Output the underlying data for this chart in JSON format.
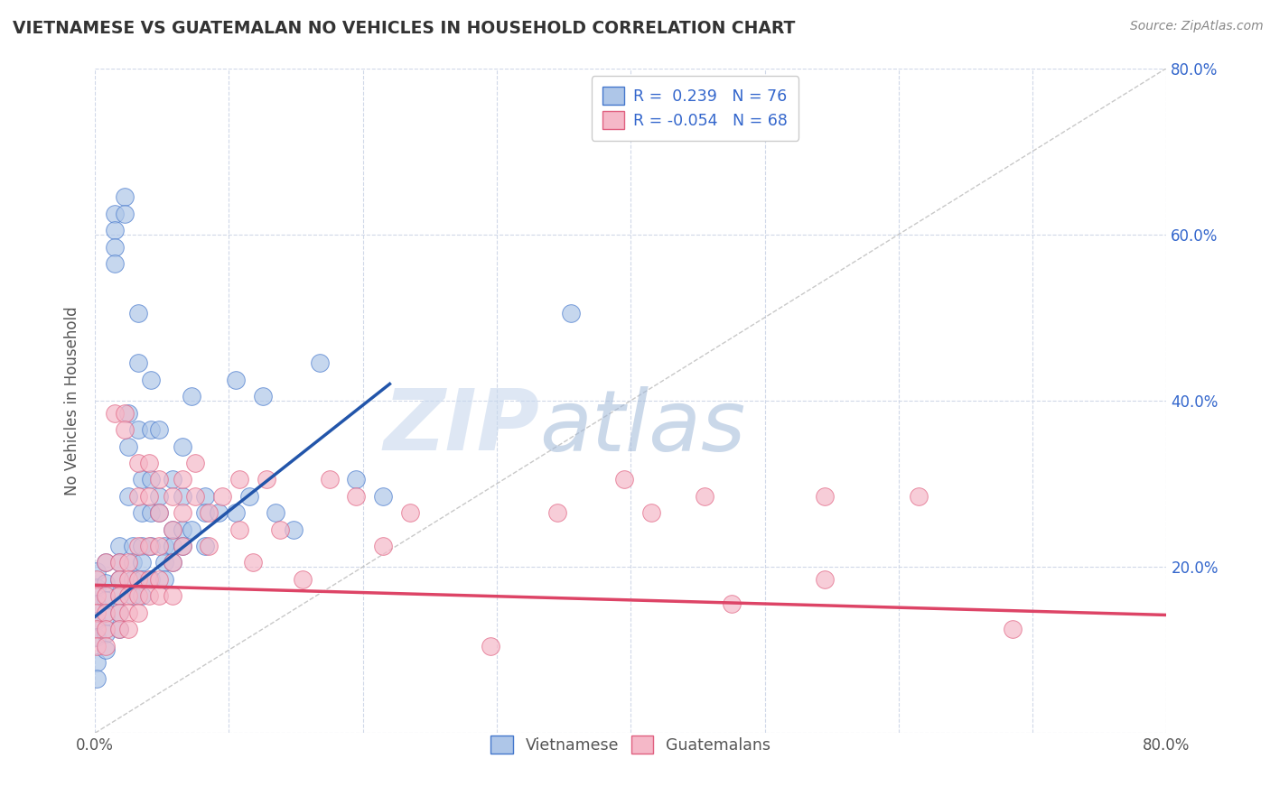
{
  "title": "VIETNAMESE VS GUATEMALAN NO VEHICLES IN HOUSEHOLD CORRELATION CHART",
  "source": "Source: ZipAtlas.com",
  "ylabel": "No Vehicles in Household",
  "xlim": [
    0.0,
    0.8
  ],
  "ylim": [
    0.0,
    0.8
  ],
  "xtick_vals": [
    0.0,
    0.1,
    0.2,
    0.3,
    0.4,
    0.5,
    0.6,
    0.7,
    0.8
  ],
  "ytick_vals": [
    0.0,
    0.2,
    0.4,
    0.6,
    0.8
  ],
  "right_ytick_vals": [
    0.0,
    0.2,
    0.4,
    0.6,
    0.8
  ],
  "right_ytick_labels": [
    "",
    "20.0%",
    "40.0%",
    "60.0%",
    "80.0%"
  ],
  "vietnamese_color": "#aec6e8",
  "guatemalan_color": "#f5b8c8",
  "vietnamese_edge_color": "#4477cc",
  "guatemalan_edge_color": "#e06080",
  "vietnamese_line_color": "#2255aa",
  "guatemalan_line_color": "#dd4466",
  "diagonal_color": "#bbbbbb",
  "watermark_zip": "ZIP",
  "watermark_atlas": "atlas",
  "legend_text_color": "#3366cc",
  "background_color": "#ffffff",
  "grid_color": "#d0d8e8",
  "title_color": "#333333",
  "source_color": "#888888",
  "vietnamese_points": [
    [
      0.001,
      0.195
    ],
    [
      0.001,
      0.175
    ],
    [
      0.001,
      0.155
    ],
    [
      0.001,
      0.135
    ],
    [
      0.001,
      0.115
    ],
    [
      0.001,
      0.085
    ],
    [
      0.001,
      0.065
    ],
    [
      0.008,
      0.205
    ],
    [
      0.008,
      0.18
    ],
    [
      0.008,
      0.16
    ],
    [
      0.008,
      0.14
    ],
    [
      0.008,
      0.12
    ],
    [
      0.008,
      0.1
    ],
    [
      0.015,
      0.625
    ],
    [
      0.015,
      0.605
    ],
    [
      0.015,
      0.585
    ],
    [
      0.015,
      0.565
    ],
    [
      0.018,
      0.225
    ],
    [
      0.018,
      0.205
    ],
    [
      0.018,
      0.185
    ],
    [
      0.018,
      0.165
    ],
    [
      0.018,
      0.145
    ],
    [
      0.018,
      0.125
    ],
    [
      0.022,
      0.645
    ],
    [
      0.022,
      0.625
    ],
    [
      0.025,
      0.385
    ],
    [
      0.025,
      0.345
    ],
    [
      0.025,
      0.285
    ],
    [
      0.028,
      0.225
    ],
    [
      0.028,
      0.205
    ],
    [
      0.028,
      0.185
    ],
    [
      0.028,
      0.165
    ],
    [
      0.032,
      0.505
    ],
    [
      0.032,
      0.445
    ],
    [
      0.032,
      0.365
    ],
    [
      0.035,
      0.305
    ],
    [
      0.035,
      0.265
    ],
    [
      0.035,
      0.225
    ],
    [
      0.035,
      0.205
    ],
    [
      0.035,
      0.185
    ],
    [
      0.035,
      0.165
    ],
    [
      0.042,
      0.425
    ],
    [
      0.042,
      0.365
    ],
    [
      0.042,
      0.305
    ],
    [
      0.042,
      0.265
    ],
    [
      0.042,
      0.225
    ],
    [
      0.042,
      0.185
    ],
    [
      0.048,
      0.365
    ],
    [
      0.048,
      0.285
    ],
    [
      0.048,
      0.265
    ],
    [
      0.052,
      0.225
    ],
    [
      0.052,
      0.205
    ],
    [
      0.052,
      0.185
    ],
    [
      0.058,
      0.305
    ],
    [
      0.058,
      0.245
    ],
    [
      0.058,
      0.225
    ],
    [
      0.058,
      0.205
    ],
    [
      0.065,
      0.345
    ],
    [
      0.065,
      0.285
    ],
    [
      0.065,
      0.245
    ],
    [
      0.065,
      0.225
    ],
    [
      0.072,
      0.405
    ],
    [
      0.072,
      0.245
    ],
    [
      0.082,
      0.285
    ],
    [
      0.082,
      0.265
    ],
    [
      0.082,
      0.225
    ],
    [
      0.092,
      0.265
    ],
    [
      0.105,
      0.425
    ],
    [
      0.105,
      0.265
    ],
    [
      0.115,
      0.285
    ],
    [
      0.125,
      0.405
    ],
    [
      0.135,
      0.265
    ],
    [
      0.148,
      0.245
    ],
    [
      0.168,
      0.445
    ],
    [
      0.195,
      0.305
    ],
    [
      0.215,
      0.285
    ],
    [
      0.355,
      0.505
    ]
  ],
  "guatemalan_points": [
    [
      0.001,
      0.185
    ],
    [
      0.001,
      0.165
    ],
    [
      0.001,
      0.145
    ],
    [
      0.001,
      0.125
    ],
    [
      0.001,
      0.105
    ],
    [
      0.008,
      0.205
    ],
    [
      0.008,
      0.165
    ],
    [
      0.008,
      0.145
    ],
    [
      0.008,
      0.125
    ],
    [
      0.008,
      0.105
    ],
    [
      0.015,
      0.385
    ],
    [
      0.018,
      0.205
    ],
    [
      0.018,
      0.185
    ],
    [
      0.018,
      0.165
    ],
    [
      0.018,
      0.145
    ],
    [
      0.018,
      0.125
    ],
    [
      0.022,
      0.385
    ],
    [
      0.022,
      0.365
    ],
    [
      0.025,
      0.205
    ],
    [
      0.025,
      0.185
    ],
    [
      0.025,
      0.165
    ],
    [
      0.025,
      0.145
    ],
    [
      0.025,
      0.125
    ],
    [
      0.032,
      0.325
    ],
    [
      0.032,
      0.285
    ],
    [
      0.032,
      0.225
    ],
    [
      0.032,
      0.185
    ],
    [
      0.032,
      0.165
    ],
    [
      0.032,
      0.145
    ],
    [
      0.04,
      0.325
    ],
    [
      0.04,
      0.285
    ],
    [
      0.04,
      0.225
    ],
    [
      0.04,
      0.185
    ],
    [
      0.04,
      0.165
    ],
    [
      0.048,
      0.305
    ],
    [
      0.048,
      0.265
    ],
    [
      0.048,
      0.225
    ],
    [
      0.048,
      0.185
    ],
    [
      0.048,
      0.165
    ],
    [
      0.058,
      0.285
    ],
    [
      0.058,
      0.245
    ],
    [
      0.058,
      0.205
    ],
    [
      0.058,
      0.165
    ],
    [
      0.065,
      0.305
    ],
    [
      0.065,
      0.265
    ],
    [
      0.065,
      0.225
    ],
    [
      0.075,
      0.325
    ],
    [
      0.075,
      0.285
    ],
    [
      0.085,
      0.265
    ],
    [
      0.085,
      0.225
    ],
    [
      0.095,
      0.285
    ],
    [
      0.108,
      0.305
    ],
    [
      0.108,
      0.245
    ],
    [
      0.118,
      0.205
    ],
    [
      0.128,
      0.305
    ],
    [
      0.138,
      0.245
    ],
    [
      0.155,
      0.185
    ],
    [
      0.175,
      0.305
    ],
    [
      0.195,
      0.285
    ],
    [
      0.215,
      0.225
    ],
    [
      0.235,
      0.265
    ],
    [
      0.295,
      0.105
    ],
    [
      0.345,
      0.265
    ],
    [
      0.395,
      0.305
    ],
    [
      0.415,
      0.265
    ],
    [
      0.455,
      0.285
    ],
    [
      0.475,
      0.155
    ],
    [
      0.545,
      0.285
    ],
    [
      0.545,
      0.185
    ],
    [
      0.615,
      0.285
    ],
    [
      0.685,
      0.125
    ]
  ],
  "viet_line_x": [
    0.0,
    0.22
  ],
  "viet_line_y": [
    0.14,
    0.42
  ],
  "guat_line_x": [
    0.0,
    0.8
  ],
  "guat_line_y": [
    0.178,
    0.142
  ]
}
